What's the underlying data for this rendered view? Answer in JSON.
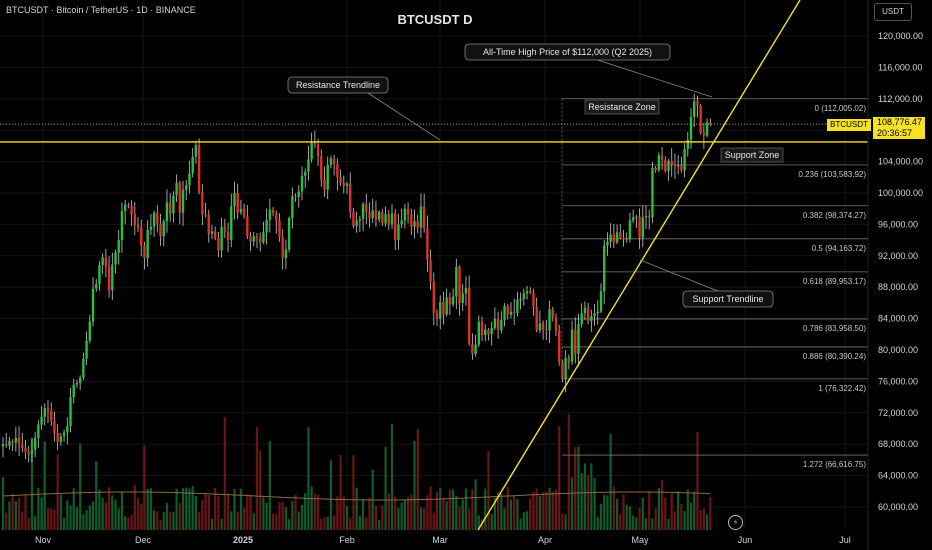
{
  "header": {
    "symbol_line": "BTCUSDT · Bitcoin / TetherUS · 1D · BINANCE",
    "title": "BTCUSDT D",
    "axis_unit": "USDT"
  },
  "current_price": {
    "symbol": "BTCUSDT",
    "price": "108,776.47",
    "countdown": "20:36:57",
    "value": 108776.47
  },
  "annotations": {
    "ath": "All-Time High Price of $112,000  (Q2 2025)",
    "resistance_trendline": "Resistance Trendline",
    "resistance_zone": "Resistance Zone",
    "support_zone": "Support Zone",
    "support_trendline": "Support Trendline"
  },
  "chart_data": {
    "type": "candlestick",
    "title": "BTCUSDT D",
    "y_axis": {
      "min": 57500,
      "max": 125000,
      "ticks": [
        60000,
        64000,
        68000,
        72000,
        76000,
        80000,
        84000,
        88000,
        92000,
        96000,
        100000,
        104000,
        108000,
        112000,
        116000,
        120000
      ],
      "tick_labels": [
        "60,000.00",
        "64,000.00",
        "68,000.00",
        "72,000.00",
        "76,000.00",
        "80,000.00",
        "84,000.00",
        "88,000.00",
        "92,000.00",
        "96,000.00",
        "100,000.00",
        "104,000.00",
        "108,000.00",
        "112,000.00",
        "116,000.00",
        "120,000.00"
      ]
    },
    "x_axis": {
      "labels": [
        "Nov",
        "Dec",
        "2025",
        "Feb",
        "Mar",
        "Apr",
        "May",
        "Jun",
        "Jul"
      ]
    },
    "fibonacci": [
      {
        "level": "0",
        "price": 112005.02,
        "label": "0 (112,005.02)"
      },
      {
        "level": "0.236",
        "price": 103583.92,
        "label": "0.236 (103,583.92)"
      },
      {
        "level": "0.382",
        "price": 98374.27,
        "label": "0.382 (98,374.27)"
      },
      {
        "level": "0.5",
        "price": 94163.72,
        "label": "0.5 (94,163.72)"
      },
      {
        "level": "0.618",
        "price": 89953.17,
        "label": "0.618 (89,953.17)"
      },
      {
        "level": "0.786",
        "price": 83958.5,
        "label": "0.786 (83,958.50)"
      },
      {
        "level": "0.886",
        "price": 80390.24,
        "label": "0.886 (80,390.24)"
      },
      {
        "level": "1",
        "price": 76322.42,
        "label": "1 (76,322.42)"
      },
      {
        "level": "1.272",
        "price": 66616.75,
        "label": "1.272 (66,616.75)"
      }
    ],
    "resistance_level": 106500,
    "closes": [
      68000,
      67800,
      68400,
      68200,
      68800,
      68000,
      67500,
      67000,
      66700,
      67300,
      68800,
      70500,
      71500,
      72600,
      72300,
      71000,
      69400,
      68300,
      69000,
      69500,
      70300,
      74000,
      75600,
      75800,
      76500,
      78900,
      81200,
      83600,
      87800,
      88400,
      90800,
      91800,
      90600,
      87600,
      90900,
      92400,
      94000,
      97700,
      98500,
      98400,
      97300,
      95900,
      95600,
      93300,
      91700,
      95300,
      95700,
      97500,
      96100,
      94500,
      96400,
      98800,
      97400,
      99700,
      101300,
      97500,
      100400,
      101000,
      102500,
      104600,
      106100,
      100100,
      97300,
      97200,
      94800,
      95100,
      94300,
      92700,
      95700,
      95100,
      94000,
      98300,
      100000,
      97500,
      98000,
      97000,
      94500,
      93800,
      94500,
      94300,
      93700,
      95000,
      96600,
      97900,
      97500,
      96500,
      94400,
      91700,
      92800,
      96800,
      99600,
      99500,
      100200,
      102200,
      102700,
      104300,
      106400,
      106200,
      104700,
      101700,
      100400,
      103600,
      104400,
      103700,
      102000,
      101300,
      100900,
      101200,
      97600,
      95800,
      96500,
      96700,
      98600,
      97600,
      96800,
      97800,
      96600,
      97600,
      96100,
      97300,
      96000,
      97400,
      94000,
      96000,
      96500,
      98000,
      97200,
      95700,
      96400,
      95600,
      98300,
      95500,
      91500,
      88700,
      84700,
      84000,
      86100,
      84500,
      86700,
      85800,
      86800,
      90600,
      86000,
      87200,
      87900,
      80800,
      79500,
      80700,
      83600,
      81900,
      82600,
      82000,
      82800,
      84000,
      82500,
      83800,
      85600,
      84500,
      84900,
      84700,
      86400,
      86500,
      87200,
      87500,
      87300,
      85500,
      82500,
      83400,
      82600,
      82500,
      85200,
      84200,
      82500,
      78500,
      76300,
      79000,
      78500,
      82600,
      79500,
      83300,
      84700,
      85400,
      83700,
      84300,
      84700,
      84900,
      87500,
      93300,
      93800,
      94700,
      93700,
      95000,
      94300,
      94100,
      94200,
      96500,
      96900,
      97000,
      94300,
      96900,
      97100,
      96900,
      103200,
      102900,
      104800,
      104200,
      102800,
      104100,
      103600,
      103400,
      103500,
      102900,
      105600,
      106800,
      109700,
      111700,
      111100,
      107700,
      107300,
      109000,
      108776
    ]
  }
}
